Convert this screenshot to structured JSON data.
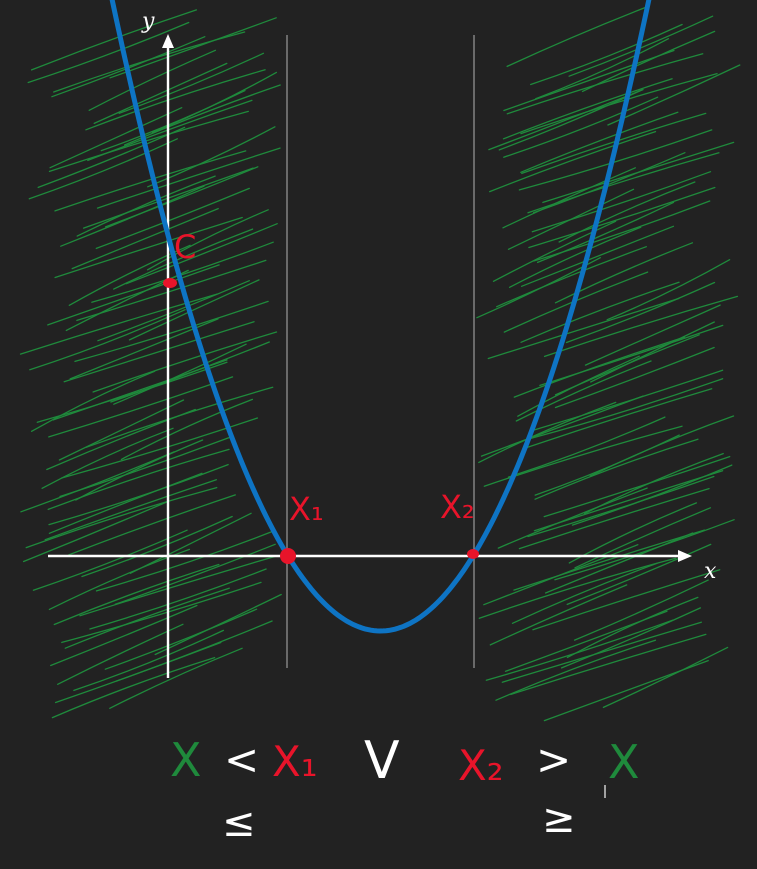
{
  "axes": {
    "x_label": "x",
    "y_label": "y"
  },
  "points": {
    "c_label": "C",
    "x1_label": "X₁",
    "x2_label": "X₂"
  },
  "solution": {
    "x_left": "X",
    "lt": "<",
    "x1": "X₁",
    "or": "V",
    "x2": "X₂",
    "gt": ">",
    "x_right": "X",
    "le": "≤",
    "ge": "≥"
  },
  "colors": {
    "background": "#222222",
    "curve": "#0e74c4",
    "hatch": "#1f8a3c",
    "points": "#e8142a",
    "axes": "#ffffff",
    "guides": "#9a9a9a"
  }
}
